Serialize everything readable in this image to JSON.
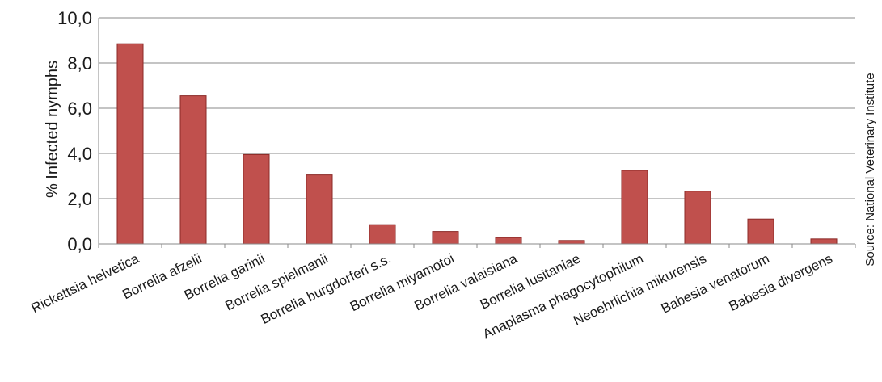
{
  "chart_data": {
    "type": "bar",
    "categories": [
      "Rickettsia helvetica",
      "Borrelia afzelii",
      "Borrelia garinii",
      "Borrelia spielmanii",
      "Borrelia burgdorferi s.s.",
      "Borrelia miyamotoi",
      "Borrelia valaisiana",
      "Borrelia lusitaniae",
      "Anaplasma phagocytophilum",
      "Neoehrlichia mikurensis",
      "Babesia venatorum",
      "Babesia divergens"
    ],
    "values": [
      8.85,
      6.55,
      3.95,
      3.05,
      0.85,
      0.55,
      0.28,
      0.15,
      3.25,
      2.33,
      1.1,
      0.22
    ],
    "ylabel": "% Infected nymphs",
    "xlabel": "",
    "ylim": [
      0,
      10
    ],
    "yticks": [
      "0,0",
      "2,0",
      "4,0",
      "6,0",
      "8,0",
      "10,0"
    ],
    "ytick_values": [
      0,
      2,
      4,
      6,
      8,
      10
    ],
    "grid": true,
    "bar_color": "#c0504d",
    "bar_edge_color": "#8b2a27",
    "source": "Source: National Veterinary Institute"
  }
}
